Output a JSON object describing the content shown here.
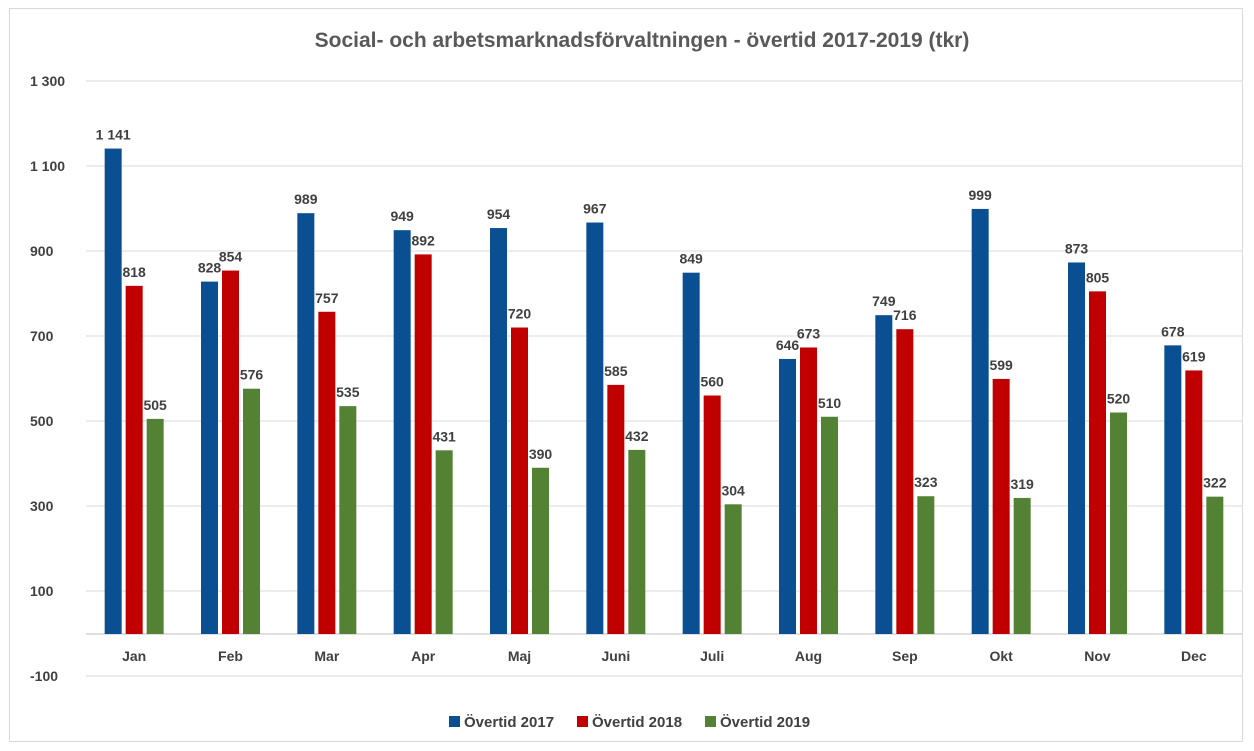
{
  "chart_data": {
    "type": "bar",
    "title": "Social- och arbetsmarknadsförvaltningen - övertid 2017-2019 (tkr)",
    "xlabel": "",
    "ylabel": "",
    "ylim": [
      -100,
      1300
    ],
    "yticks": [
      1300,
      1100,
      900,
      700,
      500,
      300,
      100,
      -100
    ],
    "ytick_labels": [
      "1 300",
      "1 100",
      "900",
      "700",
      "500",
      "300",
      "100",
      "-100"
    ],
    "grid": true,
    "legend_position": "bottom",
    "categories": [
      "Jan",
      "Feb",
      "Mar",
      "Apr",
      "Maj",
      "Juni",
      "Juli",
      "Aug",
      "Sep",
      "Okt",
      "Nov",
      "Dec"
    ],
    "series": [
      {
        "name": "Övertid 2017",
        "color": "#0a4f92",
        "values": [
          1141,
          828,
          989,
          949,
          954,
          967,
          849,
          646,
          749,
          999,
          873,
          678
        ],
        "labels": [
          "1 141",
          "828",
          "989",
          "949",
          "954",
          "967",
          "849",
          "646",
          "749",
          "999",
          "873",
          "678"
        ]
      },
      {
        "name": "Övertid 2018",
        "color": "#c00000",
        "values": [
          818,
          854,
          757,
          892,
          720,
          585,
          560,
          673,
          716,
          599,
          805,
          619
        ],
        "labels": [
          "818",
          "854",
          "757",
          "892",
          "720",
          "585",
          "560",
          "673",
          "716",
          "599",
          "805",
          "619"
        ]
      },
      {
        "name": "Övertid 2019",
        "color": "#548235",
        "values": [
          505,
          576,
          535,
          431,
          390,
          432,
          304,
          510,
          323,
          319,
          520,
          322
        ],
        "labels": [
          "505",
          "576",
          "535",
          "431",
          "390",
          "432",
          "304",
          "510",
          "323",
          "319",
          "520",
          "322"
        ]
      }
    ]
  },
  "colors": {
    "gridline": "#d9d9d9",
    "axis": "#bfbfbf",
    "text": "#404040",
    "title": "#595959"
  }
}
